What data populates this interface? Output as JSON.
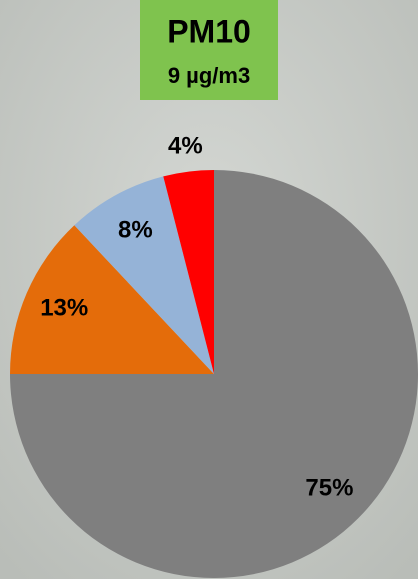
{
  "chart_data": {
    "type": "pie",
    "title": "PM10",
    "subtitle": "9 µg/m3",
    "values": [
      75,
      13,
      8,
      4
    ],
    "value_labels": [
      "75%",
      "13%",
      "8%",
      "4%"
    ],
    "colors": [
      "#7f7f7f",
      "#e46c0a",
      "#95b3d7",
      "#ff0000"
    ]
  }
}
